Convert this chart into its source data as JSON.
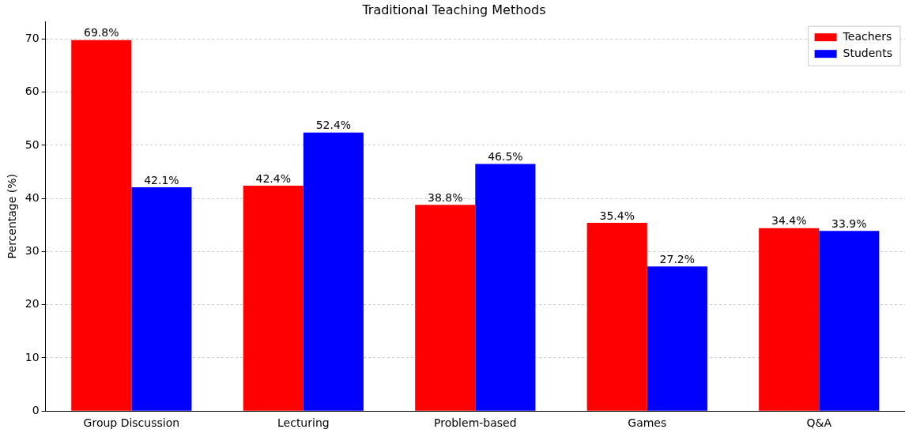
{
  "chart_data": {
    "type": "bar",
    "title": "Traditional Teaching Methods",
    "ylabel": "Percentage (%)",
    "categories": [
      "Group Discussion",
      "Lecturing",
      "Problem-based",
      "Games",
      "Q&A"
    ],
    "series": [
      {
        "name": "Teachers",
        "color": "#ff0000",
        "values": [
          69.8,
          42.4,
          38.8,
          35.4,
          34.4
        ],
        "value_labels": [
          "69.8%",
          "42.4%",
          "38.8%",
          "35.4%",
          "34.4%"
        ]
      },
      {
        "name": "Students",
        "color": "#0000ff",
        "values": [
          42.1,
          52.4,
          46.5,
          27.2,
          33.9
        ],
        "value_labels": [
          "42.1%",
          "52.4%",
          "46.5%",
          "27.2%",
          "33.9%"
        ]
      }
    ],
    "ylim": [
      0,
      73.3
    ],
    "yticks": [
      0,
      10,
      20,
      30,
      40,
      50,
      60,
      70
    ],
    "grid": "y",
    "legend": "top right"
  }
}
